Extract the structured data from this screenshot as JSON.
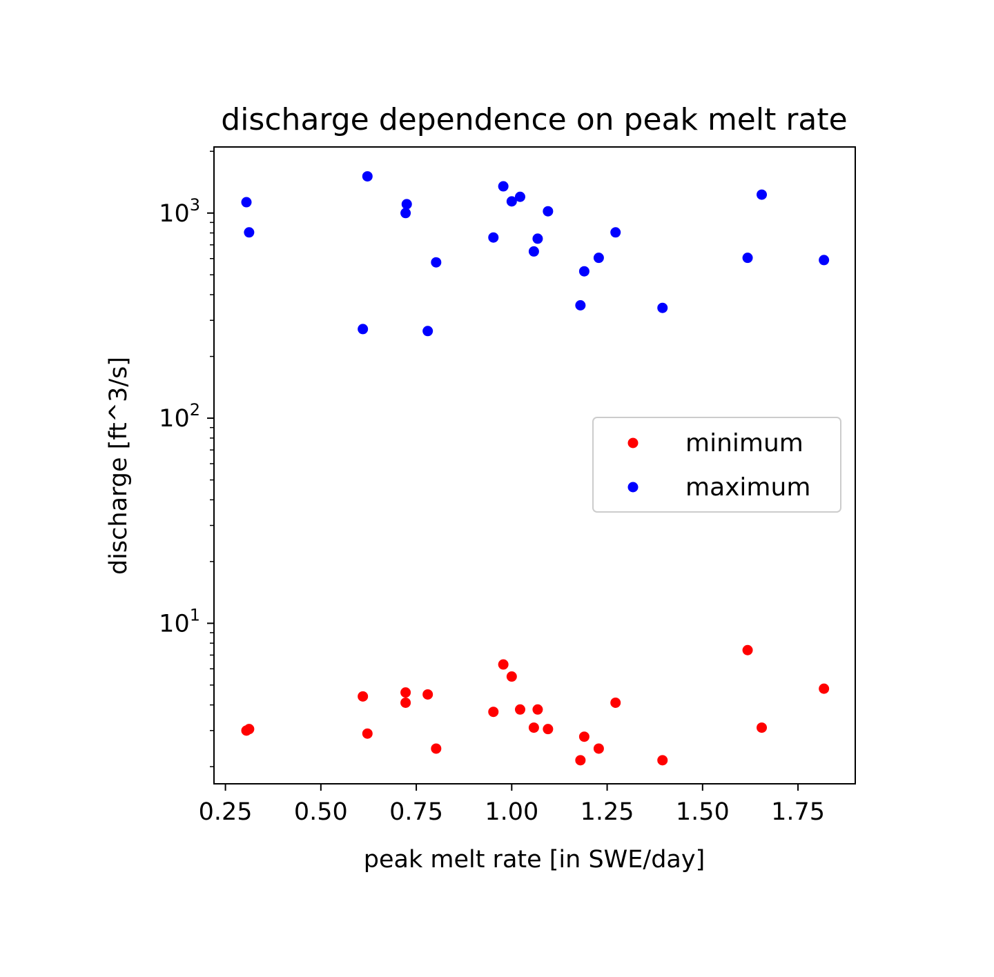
{
  "chart_data": {
    "type": "scatter",
    "title": "discharge dependence on peak melt rate",
    "xlabel": "peak melt rate [in SWE/day]",
    "ylabel": "discharge [ft^3/s]",
    "xlim": [
      0.22,
      1.9
    ],
    "ylim": [
      1.65,
      2100
    ],
    "yscale": "log",
    "grid": false,
    "legend_position": "center-right",
    "x_ticks": [
      {
        "value": 0.25,
        "label": "0.25"
      },
      {
        "value": 0.5,
        "label": "0.50"
      },
      {
        "value": 0.75,
        "label": "0.75"
      },
      {
        "value": 1.0,
        "label": "1.00"
      },
      {
        "value": 1.25,
        "label": "1.25"
      },
      {
        "value": 1.5,
        "label": "1.50"
      },
      {
        "value": 1.75,
        "label": "1.75"
      }
    ],
    "y_ticks": [
      {
        "value": 10,
        "base": "10",
        "exp": "1"
      },
      {
        "value": 100,
        "base": "10",
        "exp": "2"
      },
      {
        "value": 1000,
        "base": "10",
        "exp": "3"
      }
    ],
    "series": [
      {
        "name": "minimum",
        "color": "#ff0000",
        "points": [
          [
            0.305,
            3.0
          ],
          [
            0.312,
            3.05
          ],
          [
            0.61,
            4.4
          ],
          [
            0.622,
            2.9
          ],
          [
            0.722,
            4.6
          ],
          [
            0.722,
            4.1
          ],
          [
            0.78,
            4.5
          ],
          [
            0.802,
            2.45
          ],
          [
            0.952,
            3.7
          ],
          [
            0.978,
            6.3
          ],
          [
            1.0,
            5.5
          ],
          [
            1.022,
            3.8
          ],
          [
            1.058,
            3.1
          ],
          [
            1.068,
            3.8
          ],
          [
            1.095,
            3.05
          ],
          [
            1.18,
            2.15
          ],
          [
            1.19,
            2.8
          ],
          [
            1.228,
            2.45
          ],
          [
            1.272,
            4.1
          ],
          [
            1.395,
            2.15
          ],
          [
            1.618,
            7.4
          ],
          [
            1.655,
            3.1
          ],
          [
            1.818,
            4.8
          ]
        ]
      },
      {
        "name": "maximum",
        "color": "#0000ff",
        "points": [
          [
            0.305,
            1130
          ],
          [
            0.312,
            805
          ],
          [
            0.61,
            272
          ],
          [
            0.622,
            1510
          ],
          [
            0.722,
            1000
          ],
          [
            0.725,
            1105
          ],
          [
            0.78,
            266
          ],
          [
            0.802,
            575
          ],
          [
            0.952,
            760
          ],
          [
            0.978,
            1350
          ],
          [
            1.0,
            1140
          ],
          [
            1.022,
            1200
          ],
          [
            1.058,
            650
          ],
          [
            1.068,
            750
          ],
          [
            1.095,
            1020
          ],
          [
            1.18,
            355
          ],
          [
            1.19,
            520
          ],
          [
            1.228,
            605
          ],
          [
            1.272,
            805
          ],
          [
            1.395,
            345
          ],
          [
            1.618,
            605
          ],
          [
            1.655,
            1230
          ],
          [
            1.818,
            590
          ]
        ]
      }
    ]
  }
}
